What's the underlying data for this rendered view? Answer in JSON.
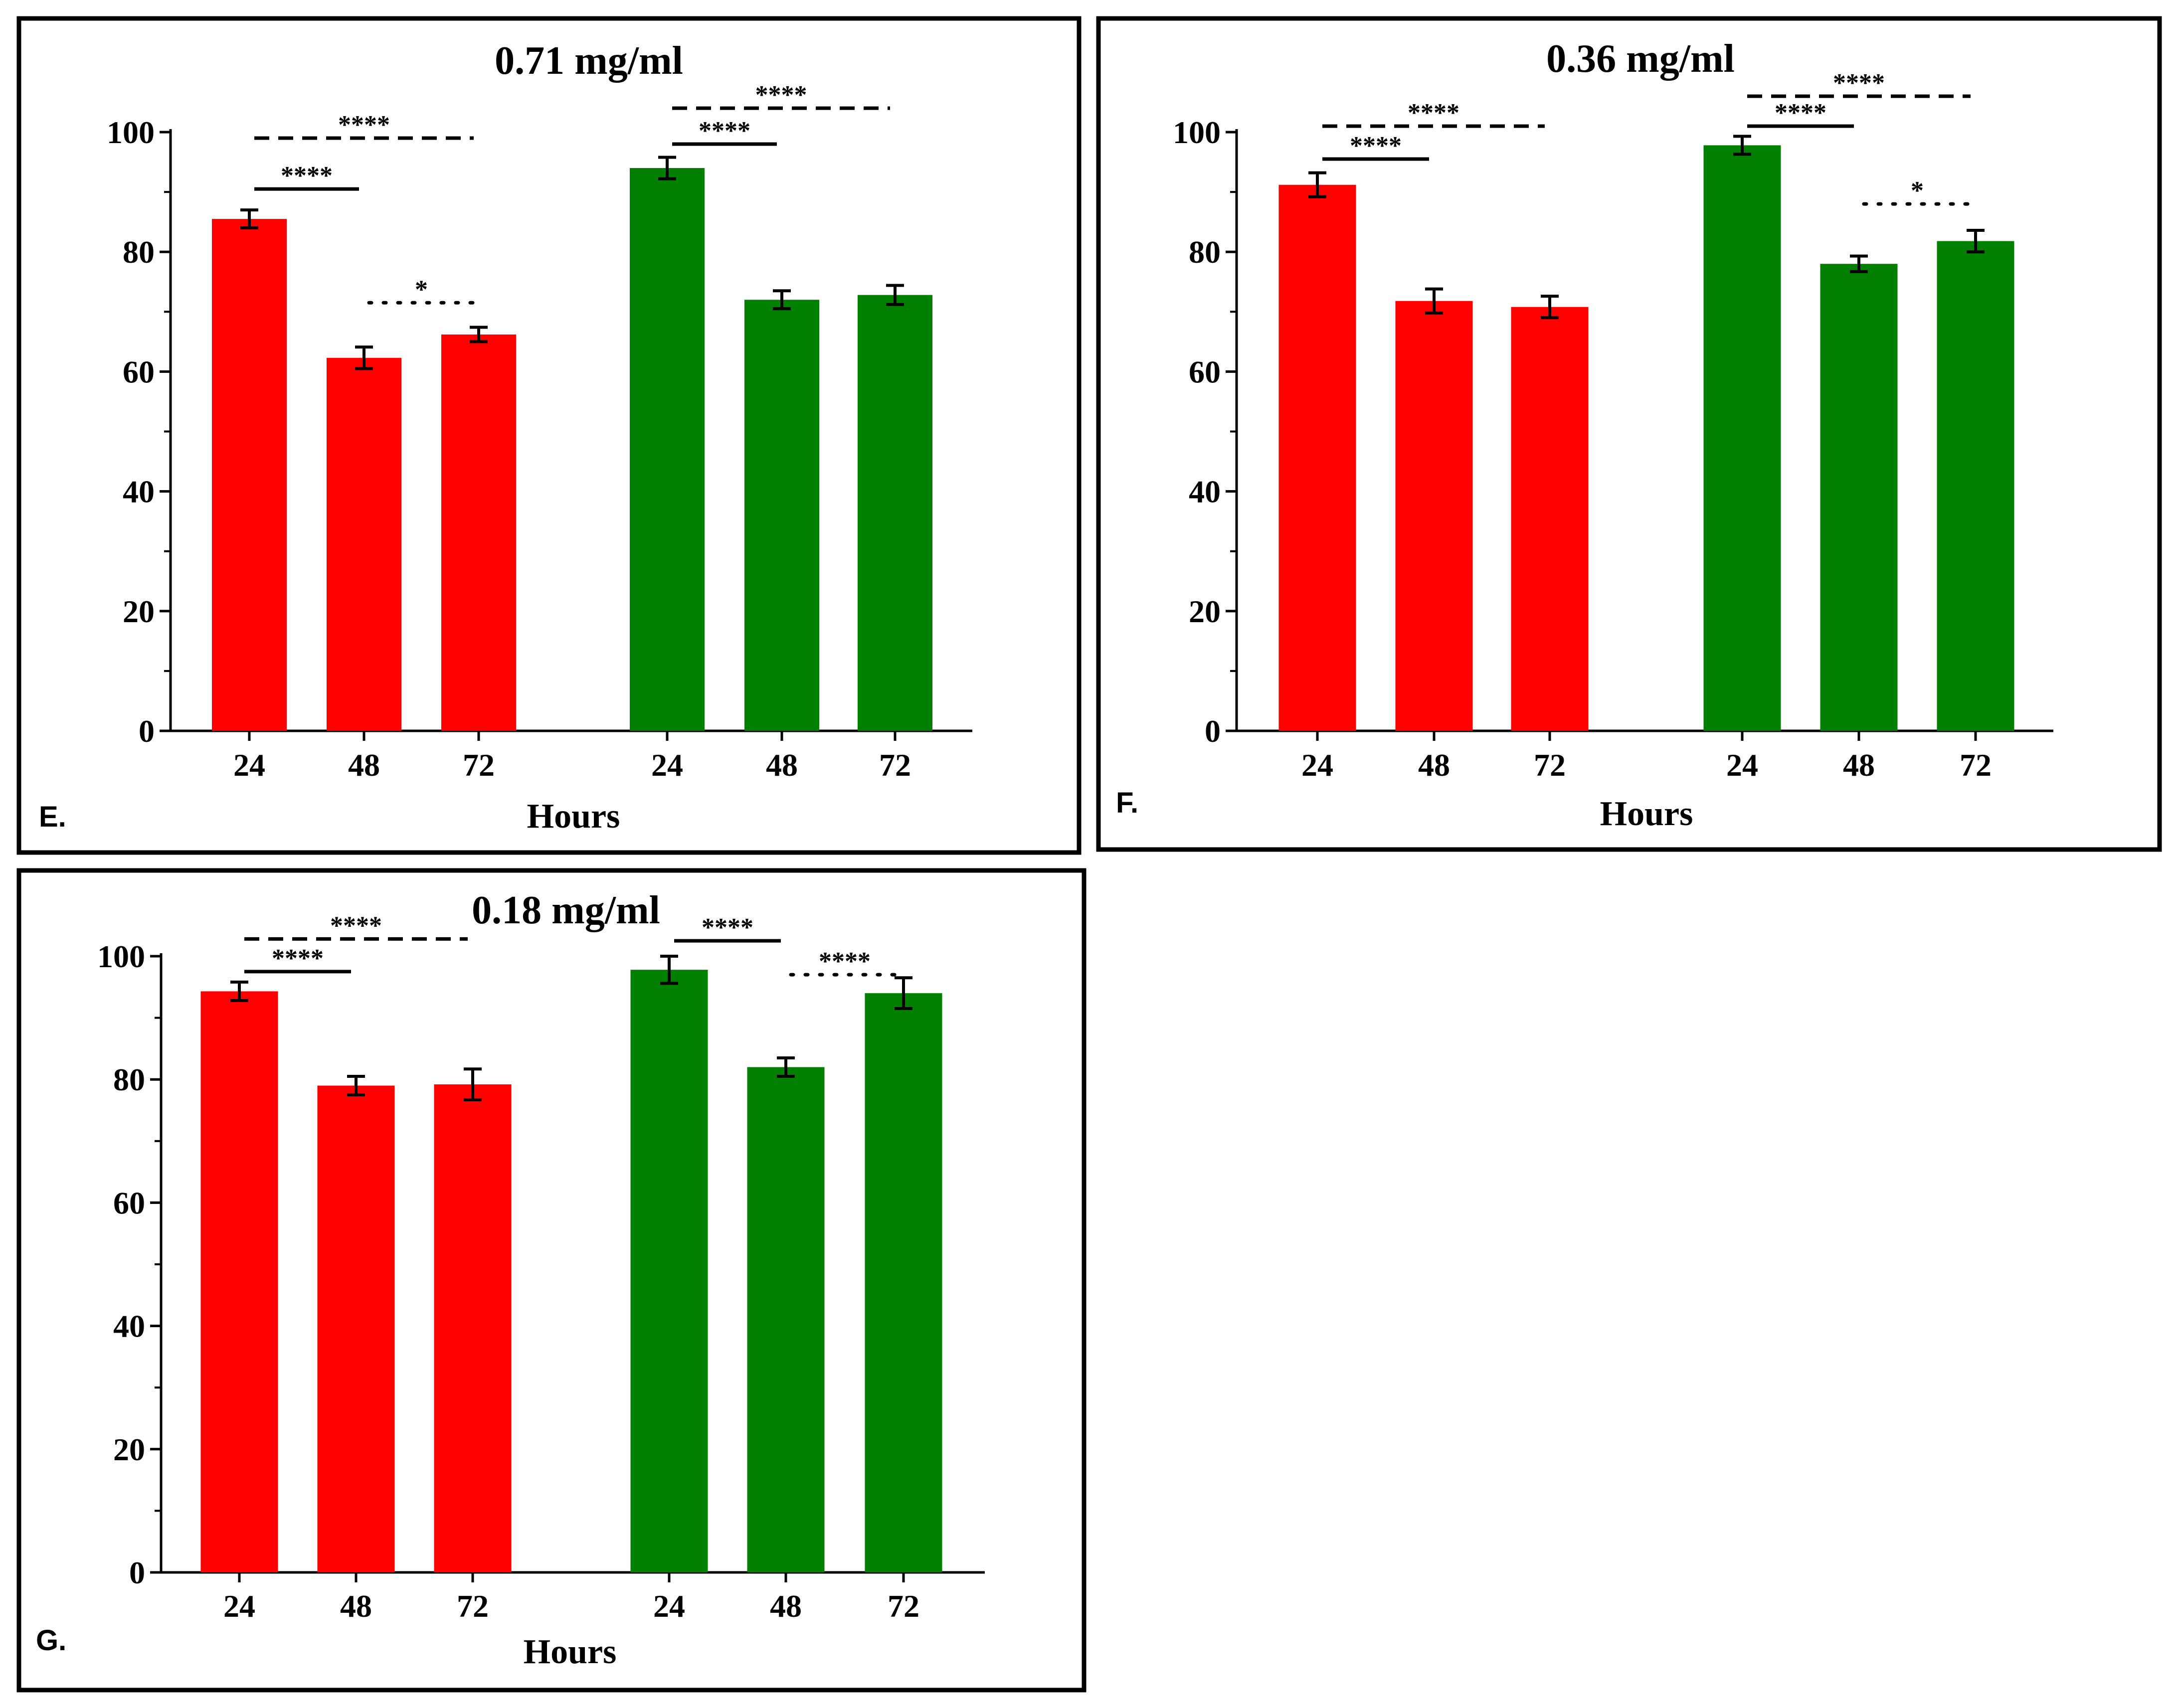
{
  "colors": {
    "red": "#ff0000",
    "green": "#007f00"
  },
  "chart_data": [
    {
      "type": "bar",
      "panel_label": "E.",
      "title": "0.71 mg/ml",
      "xlabel": "Hours",
      "ylabel": "",
      "ylim": [
        0,
        100
      ],
      "yticks": [
        "0",
        "20",
        "40",
        "60",
        "80",
        "100"
      ],
      "categories": [
        "24",
        "48",
        "72",
        "24",
        "48",
        "72"
      ],
      "bar_colors": [
        "red",
        "red",
        "red",
        "green",
        "green",
        "green"
      ],
      "values": [
        85.5,
        62.3,
        66.2,
        94.0,
        72.0,
        72.8
      ],
      "errors": [
        1.5,
        1.8,
        1.2,
        1.8,
        1.5,
        1.6
      ],
      "significance": [
        {
          "from": 0,
          "to": 2,
          "style": "dashed",
          "label": "****",
          "level": 99
        },
        {
          "from": 0,
          "to": 1,
          "style": "solid",
          "label": "****",
          "level": 90.5
        },
        {
          "from": 1,
          "to": 2,
          "style": "dotted",
          "label": "*",
          "level": 71.5
        },
        {
          "from": 3,
          "to": 5,
          "style": "dashed",
          "label": "****",
          "level": 104
        },
        {
          "from": 3,
          "to": 4,
          "style": "solid",
          "label": "****",
          "level": 98
        }
      ]
    },
    {
      "type": "bar",
      "panel_label": "F.",
      "title": "0.36 mg/ml",
      "xlabel": "Hours",
      "ylabel": "",
      "ylim": [
        0,
        100
      ],
      "yticks": [
        "0",
        "20",
        "40",
        "60",
        "80",
        "100"
      ],
      "categories": [
        "24",
        "48",
        "72",
        "24",
        "48",
        "72"
      ],
      "bar_colors": [
        "red",
        "red",
        "red",
        "green",
        "green",
        "green"
      ],
      "values": [
        91.2,
        71.8,
        70.8,
        97.8,
        78.0,
        81.8
      ],
      "errors": [
        2.0,
        2.0,
        1.8,
        1.5,
        1.3,
        1.8
      ],
      "significance": [
        {
          "from": 0,
          "to": 2,
          "style": "dashed",
          "label": "****",
          "level": 101
        },
        {
          "from": 0,
          "to": 1,
          "style": "solid",
          "label": "****",
          "level": 95.5
        },
        {
          "from": 3,
          "to": 5,
          "style": "dashed",
          "label": "****",
          "level": 106
        },
        {
          "from": 3,
          "to": 4,
          "style": "solid",
          "label": "****",
          "level": 101
        },
        {
          "from": 4,
          "to": 5,
          "style": "dotted",
          "label": "*",
          "level": 88
        }
      ]
    },
    {
      "type": "bar",
      "panel_label": "G.",
      "title": "0.18 mg/ml",
      "xlabel": "Hours",
      "ylabel": "",
      "ylim": [
        0,
        100
      ],
      "yticks": [
        "0",
        "20",
        "40",
        "60",
        "80",
        "100"
      ],
      "categories": [
        "24",
        "48",
        "72",
        "24",
        "48",
        "72"
      ],
      "bar_colors": [
        "red",
        "red",
        "red",
        "green",
        "green",
        "green"
      ],
      "values": [
        94.3,
        79.0,
        79.2,
        97.8,
        82.0,
        94.0
      ],
      "errors": [
        1.5,
        1.5,
        2.5,
        2.2,
        1.5,
        2.5
      ],
      "significance": [
        {
          "from": 0,
          "to": 2,
          "style": "dashed",
          "label": "****",
          "level": 102.8
        },
        {
          "from": 0,
          "to": 1,
          "style": "solid",
          "label": "****",
          "level": 97.5
        },
        {
          "from": 3,
          "to": 4,
          "style": "solid",
          "label": "****",
          "level": 102.5
        },
        {
          "from": 4,
          "to": 5,
          "style": "dotted",
          "label": "****",
          "level": 97
        }
      ]
    }
  ]
}
